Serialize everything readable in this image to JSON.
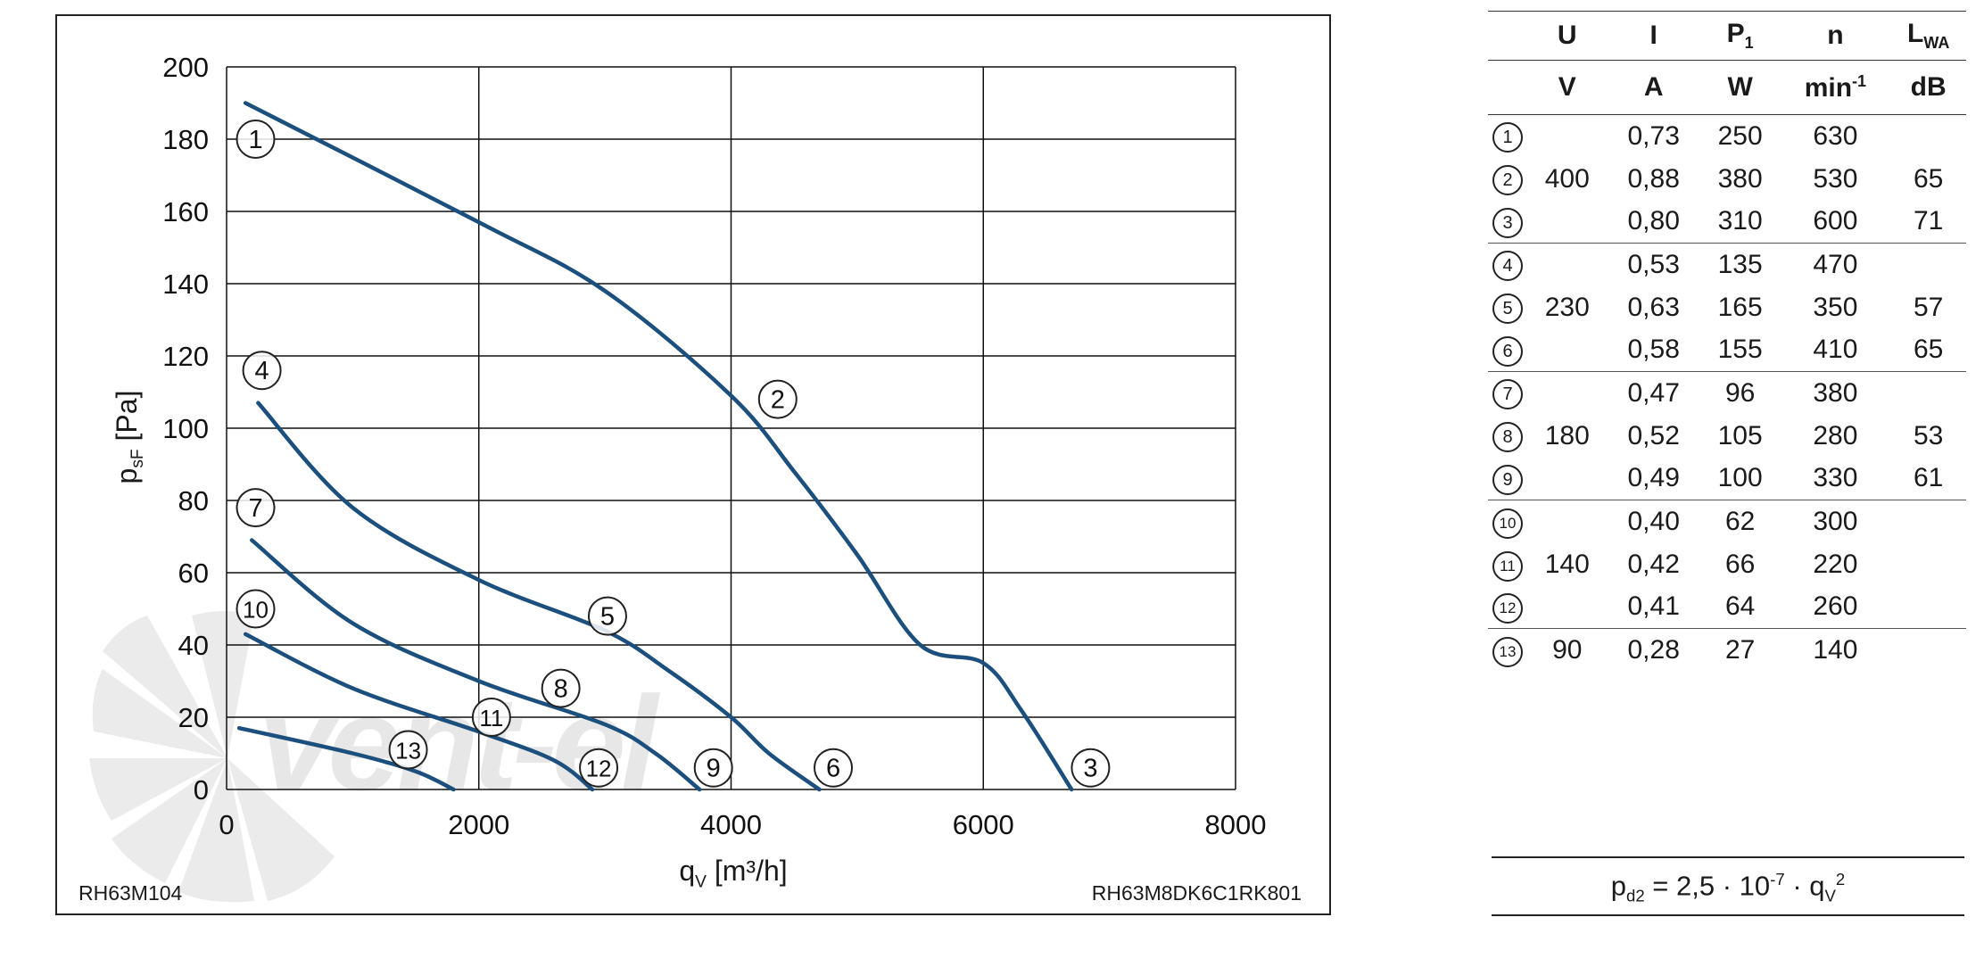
{
  "chart_data": {
    "type": "line",
    "ylabel": {
      "main": "p",
      "sub": "sF",
      "unit": "[Pa]"
    },
    "xlabel": {
      "main": "q",
      "sub": "V",
      "unit": "[m³/h]"
    },
    "xlim": [
      0,
      8000
    ],
    "ylim": [
      0,
      200
    ],
    "x_ticks": [
      "0",
      "2000",
      "4000",
      "6000",
      "8000"
    ],
    "y_ticks": [
      "0",
      "20",
      "40",
      "60",
      "80",
      "100",
      "120",
      "140",
      "160",
      "180",
      "200"
    ],
    "grid": true,
    "watermark": "vent-el",
    "footer_left": "RH63M104",
    "footer_right": "RH63M8DK6C1RK801",
    "curve_color": "#1b4f7e",
    "curves": [
      {
        "points": [
          [
            150,
            190
          ],
          [
            2000,
            157
          ],
          [
            3000,
            138
          ],
          [
            4000,
            109
          ],
          [
            4500,
            88
          ],
          [
            5000,
            65
          ],
          [
            5500,
            40
          ],
          [
            6000,
            35
          ],
          [
            6300,
            22
          ],
          [
            6700,
            0
          ]
        ]
      },
      {
        "points": [
          [
            250,
            107
          ],
          [
            1000,
            78
          ],
          [
            2000,
            58
          ],
          [
            3000,
            44
          ],
          [
            3500,
            33
          ],
          [
            4000,
            20
          ],
          [
            4300,
            10
          ],
          [
            4700,
            0
          ]
        ]
      },
      {
        "points": [
          [
            200,
            69
          ],
          [
            1000,
            46
          ],
          [
            2000,
            30
          ],
          [
            3000,
            18
          ],
          [
            3400,
            10
          ],
          [
            3750,
            0
          ]
        ]
      },
      {
        "points": [
          [
            150,
            43
          ],
          [
            1000,
            28
          ],
          [
            2000,
            16
          ],
          [
            2600,
            8
          ],
          [
            2900,
            0
          ]
        ]
      },
      {
        "points": [
          [
            100,
            17
          ],
          [
            1000,
            10
          ],
          [
            1500,
            5
          ],
          [
            1800,
            0
          ]
        ]
      }
    ],
    "markers": [
      {
        "label": "1",
        "x": 230,
        "y": 180
      },
      {
        "label": "2",
        "x": 4370,
        "y": 108
      },
      {
        "label": "3",
        "x": 6850,
        "y": 6
      },
      {
        "label": "4",
        "x": 280,
        "y": 116
      },
      {
        "label": "5",
        "x": 3020,
        "y": 48
      },
      {
        "label": "6",
        "x": 4810,
        "y": 6
      },
      {
        "label": "7",
        "x": 230,
        "y": 78
      },
      {
        "label": "8",
        "x": 2650,
        "y": 28
      },
      {
        "label": "9",
        "x": 3860,
        "y": 6
      },
      {
        "label": "10",
        "x": 230,
        "y": 50
      },
      {
        "label": "11",
        "x": 2100,
        "y": 20
      },
      {
        "label": "12",
        "x": 2950,
        "y": 6
      },
      {
        "label": "13",
        "x": 1440,
        "y": 11
      }
    ]
  },
  "table": {
    "headers": {
      "u": "U",
      "i": "I",
      "p_main": "P",
      "p_sub": "1",
      "n": "n",
      "l_main": "L",
      "l_sub": "WA"
    },
    "units": {
      "u": "V",
      "i": "A",
      "p": "W",
      "n_main": "min",
      "n_sup": "-1",
      "l": "dB"
    },
    "rows": [
      {
        "num": "1",
        "u": "",
        "i": "0,73",
        "p": "250",
        "n": "630",
        "l": ""
      },
      {
        "num": "2",
        "u": "400",
        "i": "0,88",
        "p": "380",
        "n": "530",
        "l": "65"
      },
      {
        "num": "3",
        "u": "",
        "i": "0,80",
        "p": "310",
        "n": "600",
        "l": "71"
      },
      {
        "num": "4",
        "u": "",
        "i": "0,53",
        "p": "135",
        "n": "470",
        "l": ""
      },
      {
        "num": "5",
        "u": "230",
        "i": "0,63",
        "p": "165",
        "n": "350",
        "l": "57"
      },
      {
        "num": "6",
        "u": "",
        "i": "0,58",
        "p": "155",
        "n": "410",
        "l": "65"
      },
      {
        "num": "7",
        "u": "",
        "i": "0,47",
        "p": "96",
        "n": "380",
        "l": ""
      },
      {
        "num": "8",
        "u": "180",
        "i": "0,52",
        "p": "105",
        "n": "280",
        "l": "53"
      },
      {
        "num": "9",
        "u": "",
        "i": "0,49",
        "p": "100",
        "n": "330",
        "l": "61"
      },
      {
        "num": "10",
        "u": "",
        "i": "0,40",
        "p": "62",
        "n": "300",
        "l": ""
      },
      {
        "num": "11",
        "u": "140",
        "i": "0,42",
        "p": "66",
        "n": "220",
        "l": ""
      },
      {
        "num": "12",
        "u": "",
        "i": "0,41",
        "p": "64",
        "n": "260",
        "l": ""
      },
      {
        "num": "13",
        "u": "90",
        "i": "0,28",
        "p": "27",
        "n": "140",
        "l": ""
      }
    ]
  },
  "formula": {
    "p": "p",
    "p_sub": "d2",
    "eq": " = 2,5 · 10",
    "exp": "-7",
    "mul": " · q",
    "q_sub": "V",
    "q_sup": "2"
  }
}
